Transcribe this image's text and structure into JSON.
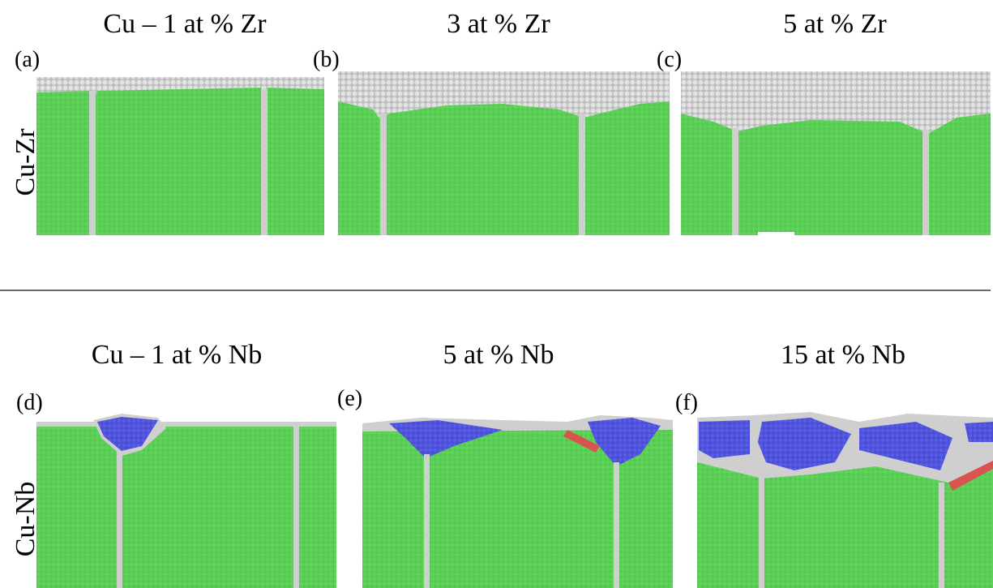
{
  "rows": [
    {
      "label": "Cu-Zr",
      "panels": [
        {
          "tag": "(a)",
          "title": "Cu – 1 at % Zr"
        },
        {
          "tag": "(b)",
          "title": "3 at % Zr"
        },
        {
          "tag": "(c)",
          "title": "5 at % Zr"
        }
      ]
    },
    {
      "label": "Cu-Nb",
      "panels": [
        {
          "tag": "(d)",
          "title": "Cu – 1 at % Nb"
        },
        {
          "tag": "(e)",
          "title": "5 at % Nb"
        },
        {
          "tag": "(f)",
          "title": "15 at % Nb"
        }
      ]
    }
  ]
}
